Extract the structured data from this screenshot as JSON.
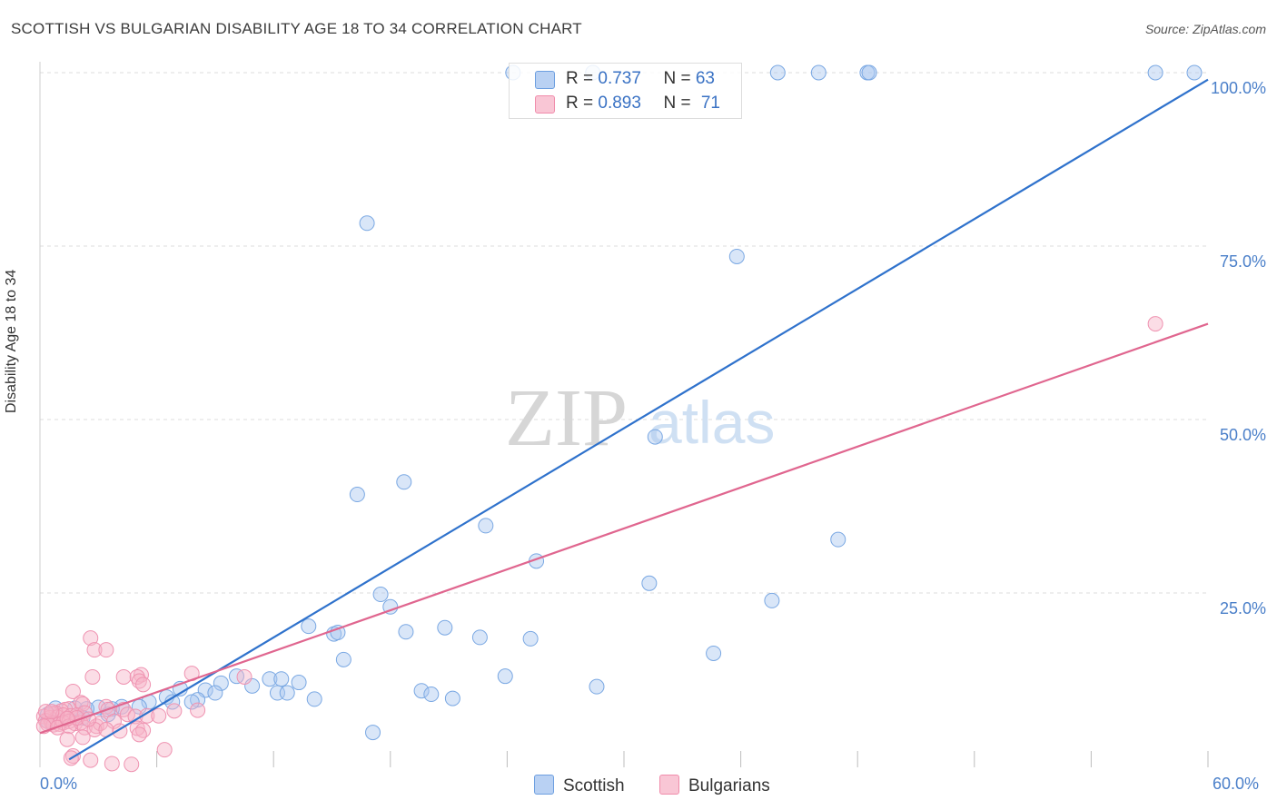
{
  "title": "SCOTTISH VS BULGARIAN DISABILITY AGE 18 TO 34 CORRELATION CHART",
  "source": "Source: ZipAtlas.com",
  "watermark": {
    "zip": "ZIP",
    "atlas": "atlas"
  },
  "legend": {
    "scottish": {
      "r_label": "R = ",
      "r_value": "0.737",
      "n_label": "N = ",
      "n_value": "63"
    },
    "bulgarian": {
      "r_label": "R = ",
      "r_value": "0.893",
      "n_label": "N = ",
      "n_value": "71"
    }
  },
  "chart_data": {
    "type": "scatter",
    "title": "SCOTTISH VS BULGARIAN DISABILITY AGE 18 TO 34 CORRELATION CHART",
    "xlabel": "",
    "ylabel": "Disability Age 18 to 34",
    "xlim": [
      0,
      60
    ],
    "ylim": [
      0,
      100
    ],
    "x_tick_labels": [
      "0.0%",
      "60.0%"
    ],
    "y_tick_labels": [
      "25.0%",
      "50.0%",
      "75.0%",
      "100.0%"
    ],
    "y_tick_values": [
      25,
      50,
      75,
      100
    ],
    "grid": true,
    "legend_position": "top-center",
    "colors": {
      "scottish": "#6d9fe0",
      "scottish_line": "#2f72cc",
      "bulgarian": "#f08cab",
      "bulgarian_line": "#e0668f"
    },
    "series": [
      {
        "name": "Scottish",
        "trend": [
          [
            1.5,
            1.0
          ],
          [
            60,
            99.0
          ]
        ],
        "points": [
          [
            24.3,
            100
          ],
          [
            28.4,
            100
          ],
          [
            37.9,
            100
          ],
          [
            40.0,
            100
          ],
          [
            42.5,
            100
          ],
          [
            42.6,
            100
          ],
          [
            57.3,
            100
          ],
          [
            59.3,
            100
          ],
          [
            16.8,
            78.3
          ],
          [
            35.8,
            73.5
          ],
          [
            31.6,
            47.5
          ],
          [
            18.7,
            41.0
          ],
          [
            16.3,
            39.2
          ],
          [
            22.9,
            34.7
          ],
          [
            25.5,
            29.6
          ],
          [
            41.0,
            32.7
          ],
          [
            31.3,
            26.4
          ],
          [
            37.6,
            23.9
          ],
          [
            17.5,
            24.8
          ],
          [
            18.0,
            23.0
          ],
          [
            13.8,
            20.2
          ],
          [
            15.1,
            19.1
          ],
          [
            15.3,
            19.3
          ],
          [
            18.8,
            19.4
          ],
          [
            20.8,
            20.0
          ],
          [
            22.6,
            18.6
          ],
          [
            25.2,
            18.4
          ],
          [
            34.6,
            16.3
          ],
          [
            15.6,
            15.4
          ],
          [
            23.9,
            13.0
          ],
          [
            10.1,
            13.0
          ],
          [
            11.8,
            12.6
          ],
          [
            12.4,
            12.6
          ],
          [
            13.3,
            12.1
          ],
          [
            9.3,
            12.0
          ],
          [
            10.9,
            11.6
          ],
          [
            28.6,
            11.5
          ],
          [
            7.2,
            11.2
          ],
          [
            8.5,
            11.0
          ],
          [
            12.2,
            10.6
          ],
          [
            12.7,
            10.6
          ],
          [
            9.0,
            10.6
          ],
          [
            19.6,
            10.9
          ],
          [
            20.1,
            10.4
          ],
          [
            21.2,
            9.8
          ],
          [
            14.1,
            9.7
          ],
          [
            6.5,
            10.0
          ],
          [
            8.1,
            9.6
          ],
          [
            7.8,
            9.3
          ],
          [
            6.8,
            9.3
          ],
          [
            5.6,
            9.3
          ],
          [
            5.1,
            8.6
          ],
          [
            4.2,
            8.6
          ],
          [
            3.7,
            8.3
          ],
          [
            3.0,
            8.5
          ],
          [
            2.4,
            8.3
          ],
          [
            1.8,
            8.4
          ],
          [
            0.8,
            8.4
          ],
          [
            0.4,
            7.5
          ],
          [
            0.4,
            6.5
          ],
          [
            3.5,
            7.5
          ],
          [
            2.2,
            7.0
          ],
          [
            17.1,
            4.9
          ]
        ]
      },
      {
        "name": "Bulgarians",
        "trend": [
          [
            0,
            4.8
          ],
          [
            60,
            63.8
          ]
        ],
        "points": [
          [
            57.3,
            63.8
          ],
          [
            2.6,
            18.5
          ],
          [
            2.8,
            16.8
          ],
          [
            3.4,
            16.8
          ],
          [
            4.3,
            12.9
          ],
          [
            5.2,
            13.2
          ],
          [
            7.8,
            13.4
          ],
          [
            5.0,
            12.9
          ],
          [
            5.1,
            12.3
          ],
          [
            5.3,
            11.8
          ],
          [
            2.7,
            12.9
          ],
          [
            10.5,
            12.9
          ],
          [
            1.7,
            10.8
          ],
          [
            2.1,
            9.2
          ],
          [
            2.2,
            9.0
          ],
          [
            3.4,
            8.6
          ],
          [
            3.5,
            8.2
          ],
          [
            4.3,
            8.2
          ],
          [
            1.5,
            8.3
          ],
          [
            1.3,
            8.2
          ],
          [
            1.1,
            8.0
          ],
          [
            0.8,
            7.7
          ],
          [
            0.6,
            7.6
          ],
          [
            0.2,
            7.2
          ],
          [
            0.5,
            7.0
          ],
          [
            0.9,
            7.1
          ],
          [
            1.2,
            7.4
          ],
          [
            1.6,
            7.3
          ],
          [
            1.9,
            7.4
          ],
          [
            2.3,
            7.7
          ],
          [
            0.3,
            6.6
          ],
          [
            0.6,
            6.3
          ],
          [
            0.7,
            6.0
          ],
          [
            1.0,
            6.1
          ],
          [
            1.2,
            6.3
          ],
          [
            1.5,
            6.5
          ],
          [
            1.8,
            6.2
          ],
          [
            2.1,
            6.3
          ],
          [
            0.4,
            6.1
          ],
          [
            0.2,
            5.8
          ],
          [
            0.9,
            5.6
          ],
          [
            1.5,
            5.8
          ],
          [
            2.3,
            5.6
          ],
          [
            2.9,
            5.8
          ],
          [
            3.1,
            6.2
          ],
          [
            3.8,
            6.5
          ],
          [
            4.5,
            7.5
          ],
          [
            4.9,
            7.2
          ],
          [
            5.5,
            7.3
          ],
          [
            6.1,
            7.3
          ],
          [
            6.9,
            8.0
          ],
          [
            8.1,
            8.1
          ],
          [
            2.8,
            5.3
          ],
          [
            3.4,
            5.3
          ],
          [
            4.1,
            5.1
          ],
          [
            5.0,
            5.5
          ],
          [
            5.3,
            5.2
          ],
          [
            5.1,
            4.6
          ],
          [
            2.2,
            4.2
          ],
          [
            1.4,
            3.9
          ],
          [
            6.4,
            2.4
          ],
          [
            1.7,
            1.5
          ],
          [
            1.6,
            1.2
          ],
          [
            2.6,
            0.9
          ],
          [
            3.7,
            0.4
          ],
          [
            4.7,
            0.3
          ],
          [
            0.3,
            7.9
          ],
          [
            0.6,
            7.9
          ],
          [
            1.9,
            7.0
          ],
          [
            1.4,
            6.9
          ],
          [
            2.5,
            6.8
          ]
        ]
      }
    ]
  }
}
